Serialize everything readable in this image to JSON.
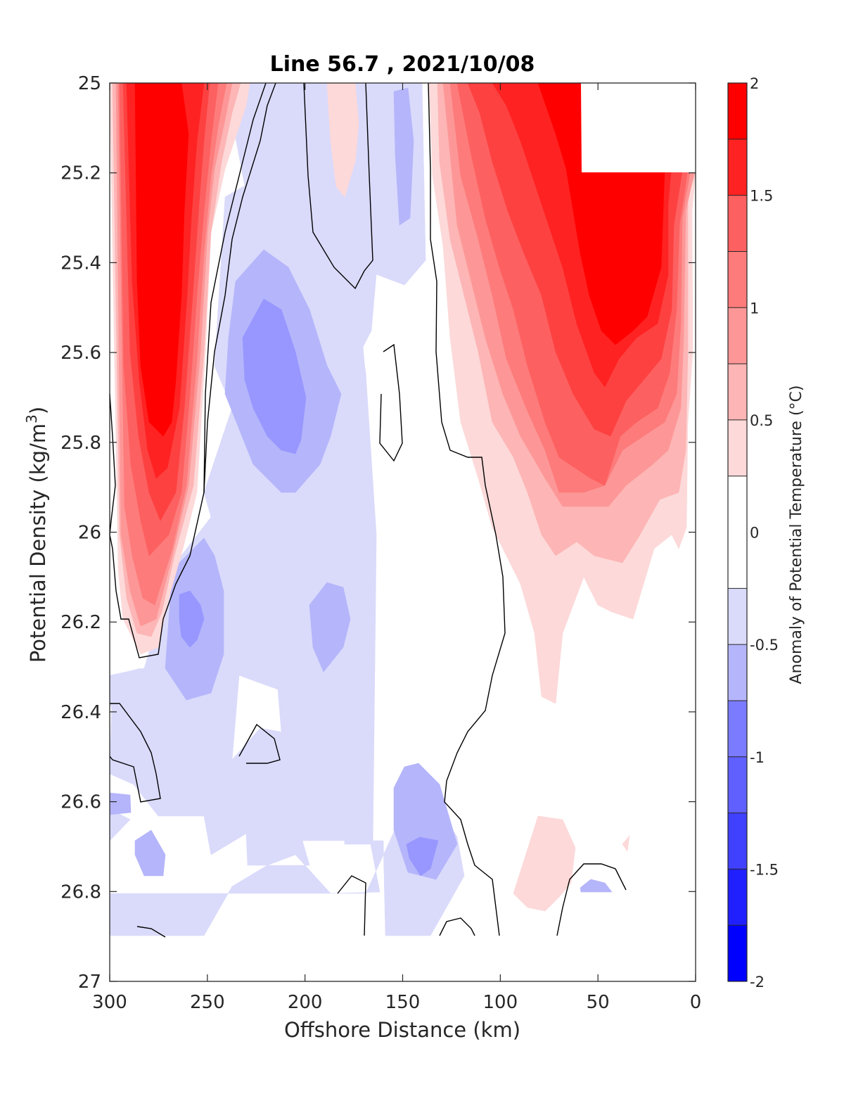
{
  "chart_data": {
    "type": "contour",
    "title": "Line 56.7 , 2021/10/08",
    "xlabel": "Offshore Distance (km)",
    "ylabel_main": "Potential Density (kg/m",
    "ylabel_sup": "3",
    "ylabel_close": ")",
    "xlim": [
      300,
      0
    ],
    "ylim": [
      25,
      27
    ],
    "x_ticks": [
      "300",
      "250",
      "200",
      "150",
      "100",
      "50",
      "0"
    ],
    "x_tick_values": [
      300,
      250,
      200,
      150,
      100,
      50,
      0
    ],
    "y_ticks": [
      "25",
      "25.2",
      "25.4",
      "25.6",
      "25.8",
      "26",
      "26.2",
      "26.4",
      "26.6",
      "26.8",
      "27"
    ],
    "y_tick_values": [
      25,
      25.2,
      25.4,
      25.6,
      25.8,
      26,
      26.2,
      26.4,
      26.6,
      26.8,
      27
    ],
    "colorbar": {
      "label": "Anomaly of Potential Temperature (°C)",
      "range": [
        -2,
        2
      ],
      "ticks": [
        "-2",
        "-1.5",
        "-1",
        "-0.5",
        "0",
        "0.5",
        "1",
        "1.5",
        "2"
      ],
      "tick_values": [
        -2,
        -1.5,
        -1,
        -0.5,
        0,
        0.5,
        1,
        1.5,
        2
      ],
      "levels": [
        -2,
        -1.75,
        -1.5,
        -1.25,
        -1,
        -0.75,
        -0.5,
        -0.25,
        0.25,
        0.5,
        0.75,
        1,
        1.25,
        1.5,
        1.75,
        2
      ],
      "colors": [
        "#0000ff",
        "#2020ff",
        "#4040ff",
        "#6060ff",
        "#7b7bff",
        "#9797ff",
        "#b5b5fb",
        "#dadafb",
        "#ffffff",
        "#fdd9d9",
        "#fdb5b5",
        "#fd9797",
        "#fd7b7b",
        "#fd6060",
        "#fd4141",
        "#ff2222",
        "#ff0000"
      ]
    },
    "features": [
      {
        "type": "warm core",
        "x_range": [
          297,
          245
        ],
        "y_range": [
          25,
          26.3
        ],
        "max_anomaly": ">1.75"
      },
      {
        "type": "warm core",
        "x_range": [
          135,
          0
        ],
        "y_range": [
          25,
          26.4
        ],
        "max_anomaly": ">1.75"
      },
      {
        "type": "cool core",
        "x_range": [
          240,
          185
        ],
        "y_range": [
          25.2,
          25.9
        ],
        "min_anomaly": "<-1"
      },
      {
        "type": "cool core",
        "x_range": [
          275,
          235
        ],
        "y_range": [
          26.0,
          26.5
        ],
        "min_anomaly": "<-1"
      },
      {
        "type": "cool patch",
        "x_range": [
          165,
          135
        ],
        "y_range": [
          25,
          25.45
        ],
        "min_anomaly": "<-0.5"
      },
      {
        "type": "cool patch",
        "x_range": [
          160,
          120
        ],
        "y_range": [
          26.55,
          26.9
        ],
        "min_anomaly": "<-0.5"
      }
    ],
    "masked_region": {
      "x_range": [
        50,
        15
      ],
      "y_range": [
        25,
        25.2
      ]
    }
  },
  "colors": {
    "axes": "#262626",
    "background": "#ffffff",
    "zero_contour": "#000000"
  }
}
